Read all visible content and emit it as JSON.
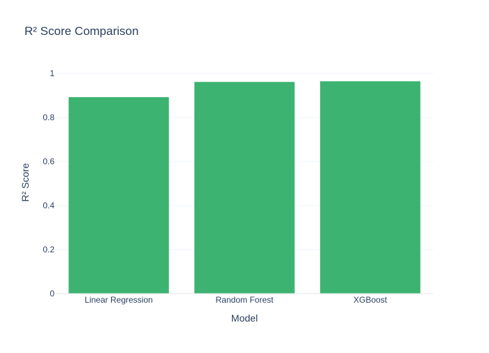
{
  "chart_data": {
    "type": "bar",
    "title": "R² Score Comparison",
    "xlabel": "Model",
    "ylabel": "R² Score",
    "categories": [
      "Linear Regression",
      "Random Forest",
      "XGBoost"
    ],
    "values": [
      0.893,
      0.962,
      0.965
    ],
    "ylim": [
      0,
      1
    ],
    "yticks": [
      0,
      0.2,
      0.4,
      0.6,
      0.8,
      1
    ],
    "ytick_labels": [
      "0",
      "0.2",
      "0.4",
      "0.6",
      "0.8",
      "1"
    ],
    "grid": true,
    "legend": "none",
    "colors": {
      "bar": "#3cb371",
      "bar_outline": "#ffffff",
      "grid": "#eef2f8",
      "axis_line": "#e6e6e6",
      "text": "#2a3f5f",
      "background": "#ffffff"
    }
  }
}
